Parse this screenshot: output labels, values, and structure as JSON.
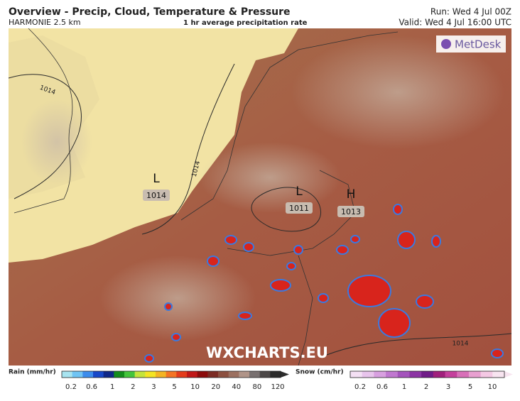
{
  "header": {
    "title": "Overview - Precip, Cloud, Temperature & Pressure",
    "model": "HARMONIE 2.5 km",
    "subtitle": "1 hr average precipitation rate",
    "run": "Run: Wed 4 Jul 00Z",
    "valid": "Valid: Wed 4 Jul 16:00 UTC"
  },
  "logo": "MetDesk",
  "pressure_centres": [
    {
      "symbol": "L",
      "value": "1014"
    },
    {
      "symbol": "L",
      "value": "1011"
    },
    {
      "symbol": "H",
      "value": "1013"
    }
  ],
  "isobar_labels": [
    "1014",
    "1014",
    "1014"
  ],
  "watermark": "WXCHARTS.EU",
  "rain_legend": {
    "title": "Rain (mm/hr)",
    "ticks": [
      "0.2",
      "0.6",
      "1",
      "2",
      "3",
      "5",
      "10",
      "20",
      "40",
      "80",
      "120"
    ]
  },
  "snow_legend": {
    "title": "Snow (cm/hr)",
    "ticks": [
      "0.2",
      "0.6",
      "1",
      "2",
      "3",
      "5",
      "10"
    ]
  }
}
